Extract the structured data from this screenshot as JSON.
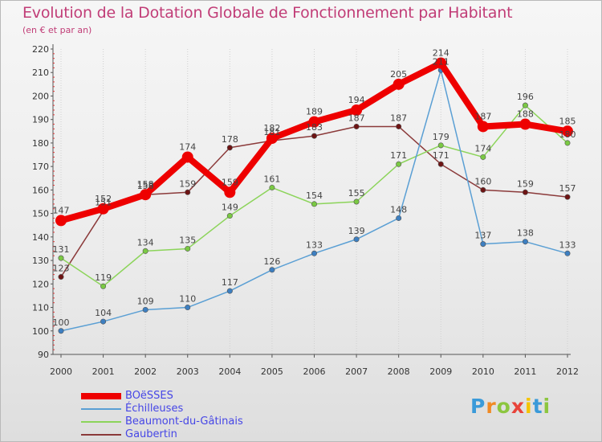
{
  "header": {
    "title": "Evolution de la Dotation Globale de Fonctionnement par Habitant",
    "subtitle": "(en € et par an)"
  },
  "brand": {
    "letters": [
      "P",
      "r",
      "o",
      "x",
      "i",
      "t",
      "i"
    ],
    "colors": [
      "#3a9ad9",
      "#f08a24",
      "#8cc63f",
      "#e8433a",
      "#f5c400",
      "#3a9ad9",
      "#8cc63f"
    ]
  },
  "chart_data": {
    "type": "line",
    "x": [
      2000,
      2001,
      2002,
      2003,
      2004,
      2005,
      2006,
      2007,
      2008,
      2009,
      2010,
      2011,
      2012
    ],
    "ylim": [
      90,
      220
    ],
    "yticks": [
      90,
      100,
      110,
      120,
      130,
      140,
      150,
      160,
      170,
      180,
      190,
      200,
      210,
      220
    ],
    "grid": "vertical",
    "legend": "bottom-left",
    "series": [
      {
        "name": "Gaubertin",
        "color": "#8b3a3a",
        "marker": "#6e1414",
        "values": [
          123,
          151,
          158,
          159,
          178,
          181,
          183,
          187,
          187,
          171,
          160,
          159,
          157
        ],
        "labels": [
          "123",
          "151",
          "158",
          "159",
          "178",
          "181",
          "183",
          "187",
          "187",
          "171",
          "160",
          "159",
          "157"
        ]
      },
      {
        "name": "Beaumont-du-Gâtinais",
        "color": "#8cd45a",
        "marker": "#7ac943",
        "values": [
          131,
          119,
          134,
          135,
          149,
          161,
          154,
          155,
          171,
          179,
          174,
          196,
          180
        ],
        "labels": [
          "131",
          "119",
          "134",
          "135",
          "149",
          "161",
          "154",
          "155",
          "171",
          "179",
          "174",
          "196",
          "180"
        ]
      },
      {
        "name": "Échilleuses",
        "color": "#5a9fd4",
        "marker": "#3d7fc1",
        "values": [
          100,
          104,
          109,
          110,
          117,
          126,
          133,
          139,
          148,
          211,
          137,
          138,
          133
        ],
        "labels": [
          "100",
          "104",
          "109",
          "110",
          "117",
          "126",
          "133",
          "139",
          "148",
          "211",
          "137",
          "138",
          "133"
        ]
      },
      {
        "name": "BOëSSES",
        "color": "#ee0000",
        "marker": "#ee0000",
        "values": [
          147,
          152,
          158,
          174,
          159,
          182,
          189,
          194,
          205,
          214,
          187,
          188,
          185
        ],
        "labels": [
          "147",
          "152",
          "158",
          "174",
          "159",
          "182",
          "189",
          "194",
          "205",
          "214",
          "187",
          "188",
          "185"
        ]
      }
    ],
    "legend_order": [
      "BOëSSES",
      "Échilleuses",
      "Beaumont-du-Gâtinais",
      "Gaubertin"
    ]
  }
}
